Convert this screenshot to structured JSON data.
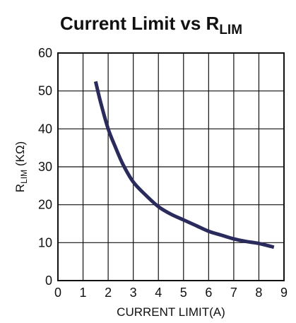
{
  "chart_data": {
    "type": "line",
    "title": {
      "main": "Current Limit vs R",
      "subscript": "LIM"
    },
    "xlabel": "CURRENT LIMIT(A)",
    "ylabel": {
      "main": "R",
      "subscript": "LIM",
      "unit": " (KΩ)"
    },
    "xlim": [
      0,
      9
    ],
    "ylim": [
      0,
      60
    ],
    "xticks": [
      0,
      1,
      2,
      3,
      4,
      5,
      6,
      7,
      8,
      9
    ],
    "yticks": [
      0,
      10,
      20,
      30,
      40,
      50,
      60
    ],
    "grid": true,
    "line_color": "#2a2a5c",
    "series": [
      {
        "x": [
          1.5,
          1.7,
          2.0,
          2.3,
          2.6,
          3.0,
          3.5,
          4.0,
          4.5,
          5.0,
          5.5,
          6.0,
          6.5,
          7.0,
          7.5,
          8.0,
          8.6
        ],
        "values": [
          52.5,
          47,
          40,
          35,
          30.5,
          26,
          22.5,
          19.5,
          17.5,
          16,
          14.5,
          13,
          12,
          11,
          10.3,
          9.8,
          8.8
        ]
      }
    ]
  }
}
